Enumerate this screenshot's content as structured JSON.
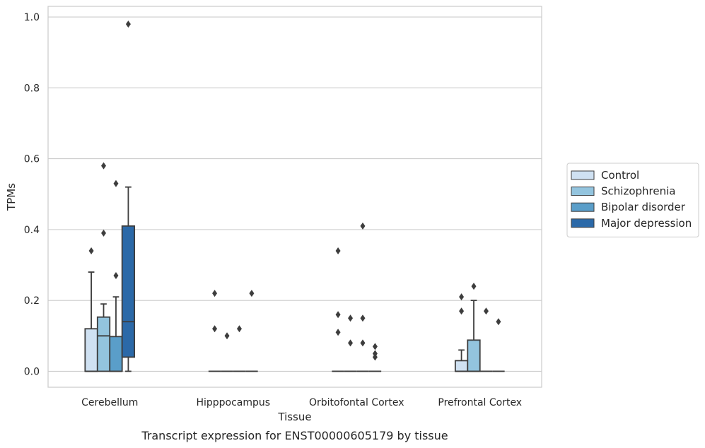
{
  "chart_data": {
    "type": "boxplot",
    "title": "",
    "caption": "Transcript expression for ENST00000605179 by tissue",
    "xlabel": "Tissue",
    "ylabel": "TPMs",
    "ylim": [
      -0.045,
      1.03
    ],
    "yticks": [
      0.0,
      0.2,
      0.4,
      0.6,
      0.8,
      1.0
    ],
    "ytick_labels": [
      "0.0",
      "0.2",
      "0.4",
      "0.6",
      "0.8",
      "1.0"
    ],
    "categories": [
      "Cerebellum",
      "Hipppocampus",
      "Orbitofontal Cortex",
      "Prefrontal Cortex"
    ],
    "grid": "horizontal",
    "legend_position": "right",
    "series": [
      {
        "name": "Control",
        "color": "#cfe1f2",
        "boxes": [
          {
            "q1": 0.0,
            "median": 0.0,
            "q3": 0.12,
            "whisker_low": 0.0,
            "whisker_high": 0.28,
            "outliers": [
              0.34
            ]
          },
          {
            "q1": 0.0,
            "median": 0.0,
            "q3": 0.0,
            "whisker_low": 0.0,
            "whisker_high": 0.0,
            "outliers": [
              0.22,
              0.12
            ]
          },
          {
            "q1": 0.0,
            "median": 0.0,
            "q3": 0.0,
            "whisker_low": 0.0,
            "whisker_high": 0.0,
            "outliers": [
              0.34,
              0.16,
              0.11
            ]
          },
          {
            "q1": 0.0,
            "median": 0.0,
            "q3": 0.03,
            "whisker_low": 0.0,
            "whisker_high": 0.06,
            "outliers": [
              0.21,
              0.17
            ]
          }
        ]
      },
      {
        "name": "Schizophrenia",
        "color": "#93c4de",
        "boxes": [
          {
            "q1": 0.0,
            "median": 0.1,
            "q3": 0.153,
            "whisker_low": 0.0,
            "whisker_high": 0.19,
            "outliers": [
              0.58,
              0.39
            ]
          },
          {
            "q1": 0.0,
            "median": 0.0,
            "q3": 0.0,
            "whisker_low": 0.0,
            "whisker_high": 0.0,
            "outliers": [
              0.1
            ]
          },
          {
            "q1": 0.0,
            "median": 0.0,
            "q3": 0.0,
            "whisker_low": 0.0,
            "whisker_high": 0.0,
            "outliers": [
              0.15,
              0.08
            ]
          },
          {
            "q1": 0.0,
            "median": 0.0,
            "q3": 0.088,
            "whisker_low": 0.0,
            "whisker_high": 0.2,
            "outliers": [
              0.24
            ]
          }
        ]
      },
      {
        "name": "Bipolar disorder",
        "color": "#5a9ec9",
        "boxes": [
          {
            "q1": 0.0,
            "median": 0.0,
            "q3": 0.098,
            "whisker_low": 0.0,
            "whisker_high": 0.21,
            "outliers": [
              0.53,
              0.27
            ]
          },
          {
            "q1": 0.0,
            "median": 0.0,
            "q3": 0.0,
            "whisker_low": 0.0,
            "whisker_high": 0.0,
            "outliers": [
              0.12
            ]
          },
          {
            "q1": 0.0,
            "median": 0.0,
            "q3": 0.0,
            "whisker_low": 0.0,
            "whisker_high": 0.0,
            "outliers": [
              0.41,
              0.15,
              0.08
            ]
          },
          {
            "q1": 0.0,
            "median": 0.0,
            "q3": 0.0,
            "whisker_low": 0.0,
            "whisker_high": 0.0,
            "outliers": [
              0.17
            ]
          }
        ]
      },
      {
        "name": "Major depression",
        "color": "#2b69a8",
        "boxes": [
          {
            "q1": 0.04,
            "median": 0.14,
            "q3": 0.41,
            "whisker_low": 0.0,
            "whisker_high": 0.52,
            "outliers": [
              0.98
            ]
          },
          {
            "q1": 0.0,
            "median": 0.0,
            "q3": 0.0,
            "whisker_low": 0.0,
            "whisker_high": 0.0,
            "outliers": [
              0.22
            ]
          },
          {
            "q1": 0.0,
            "median": 0.0,
            "q3": 0.0,
            "whisker_low": 0.0,
            "whisker_high": 0.0,
            "outliers": [
              0.07,
              0.05,
              0.04
            ]
          },
          {
            "q1": 0.0,
            "median": 0.0,
            "q3": 0.0,
            "whisker_low": 0.0,
            "whisker_high": 0.0,
            "outliers": [
              0.14
            ]
          }
        ]
      }
    ]
  }
}
